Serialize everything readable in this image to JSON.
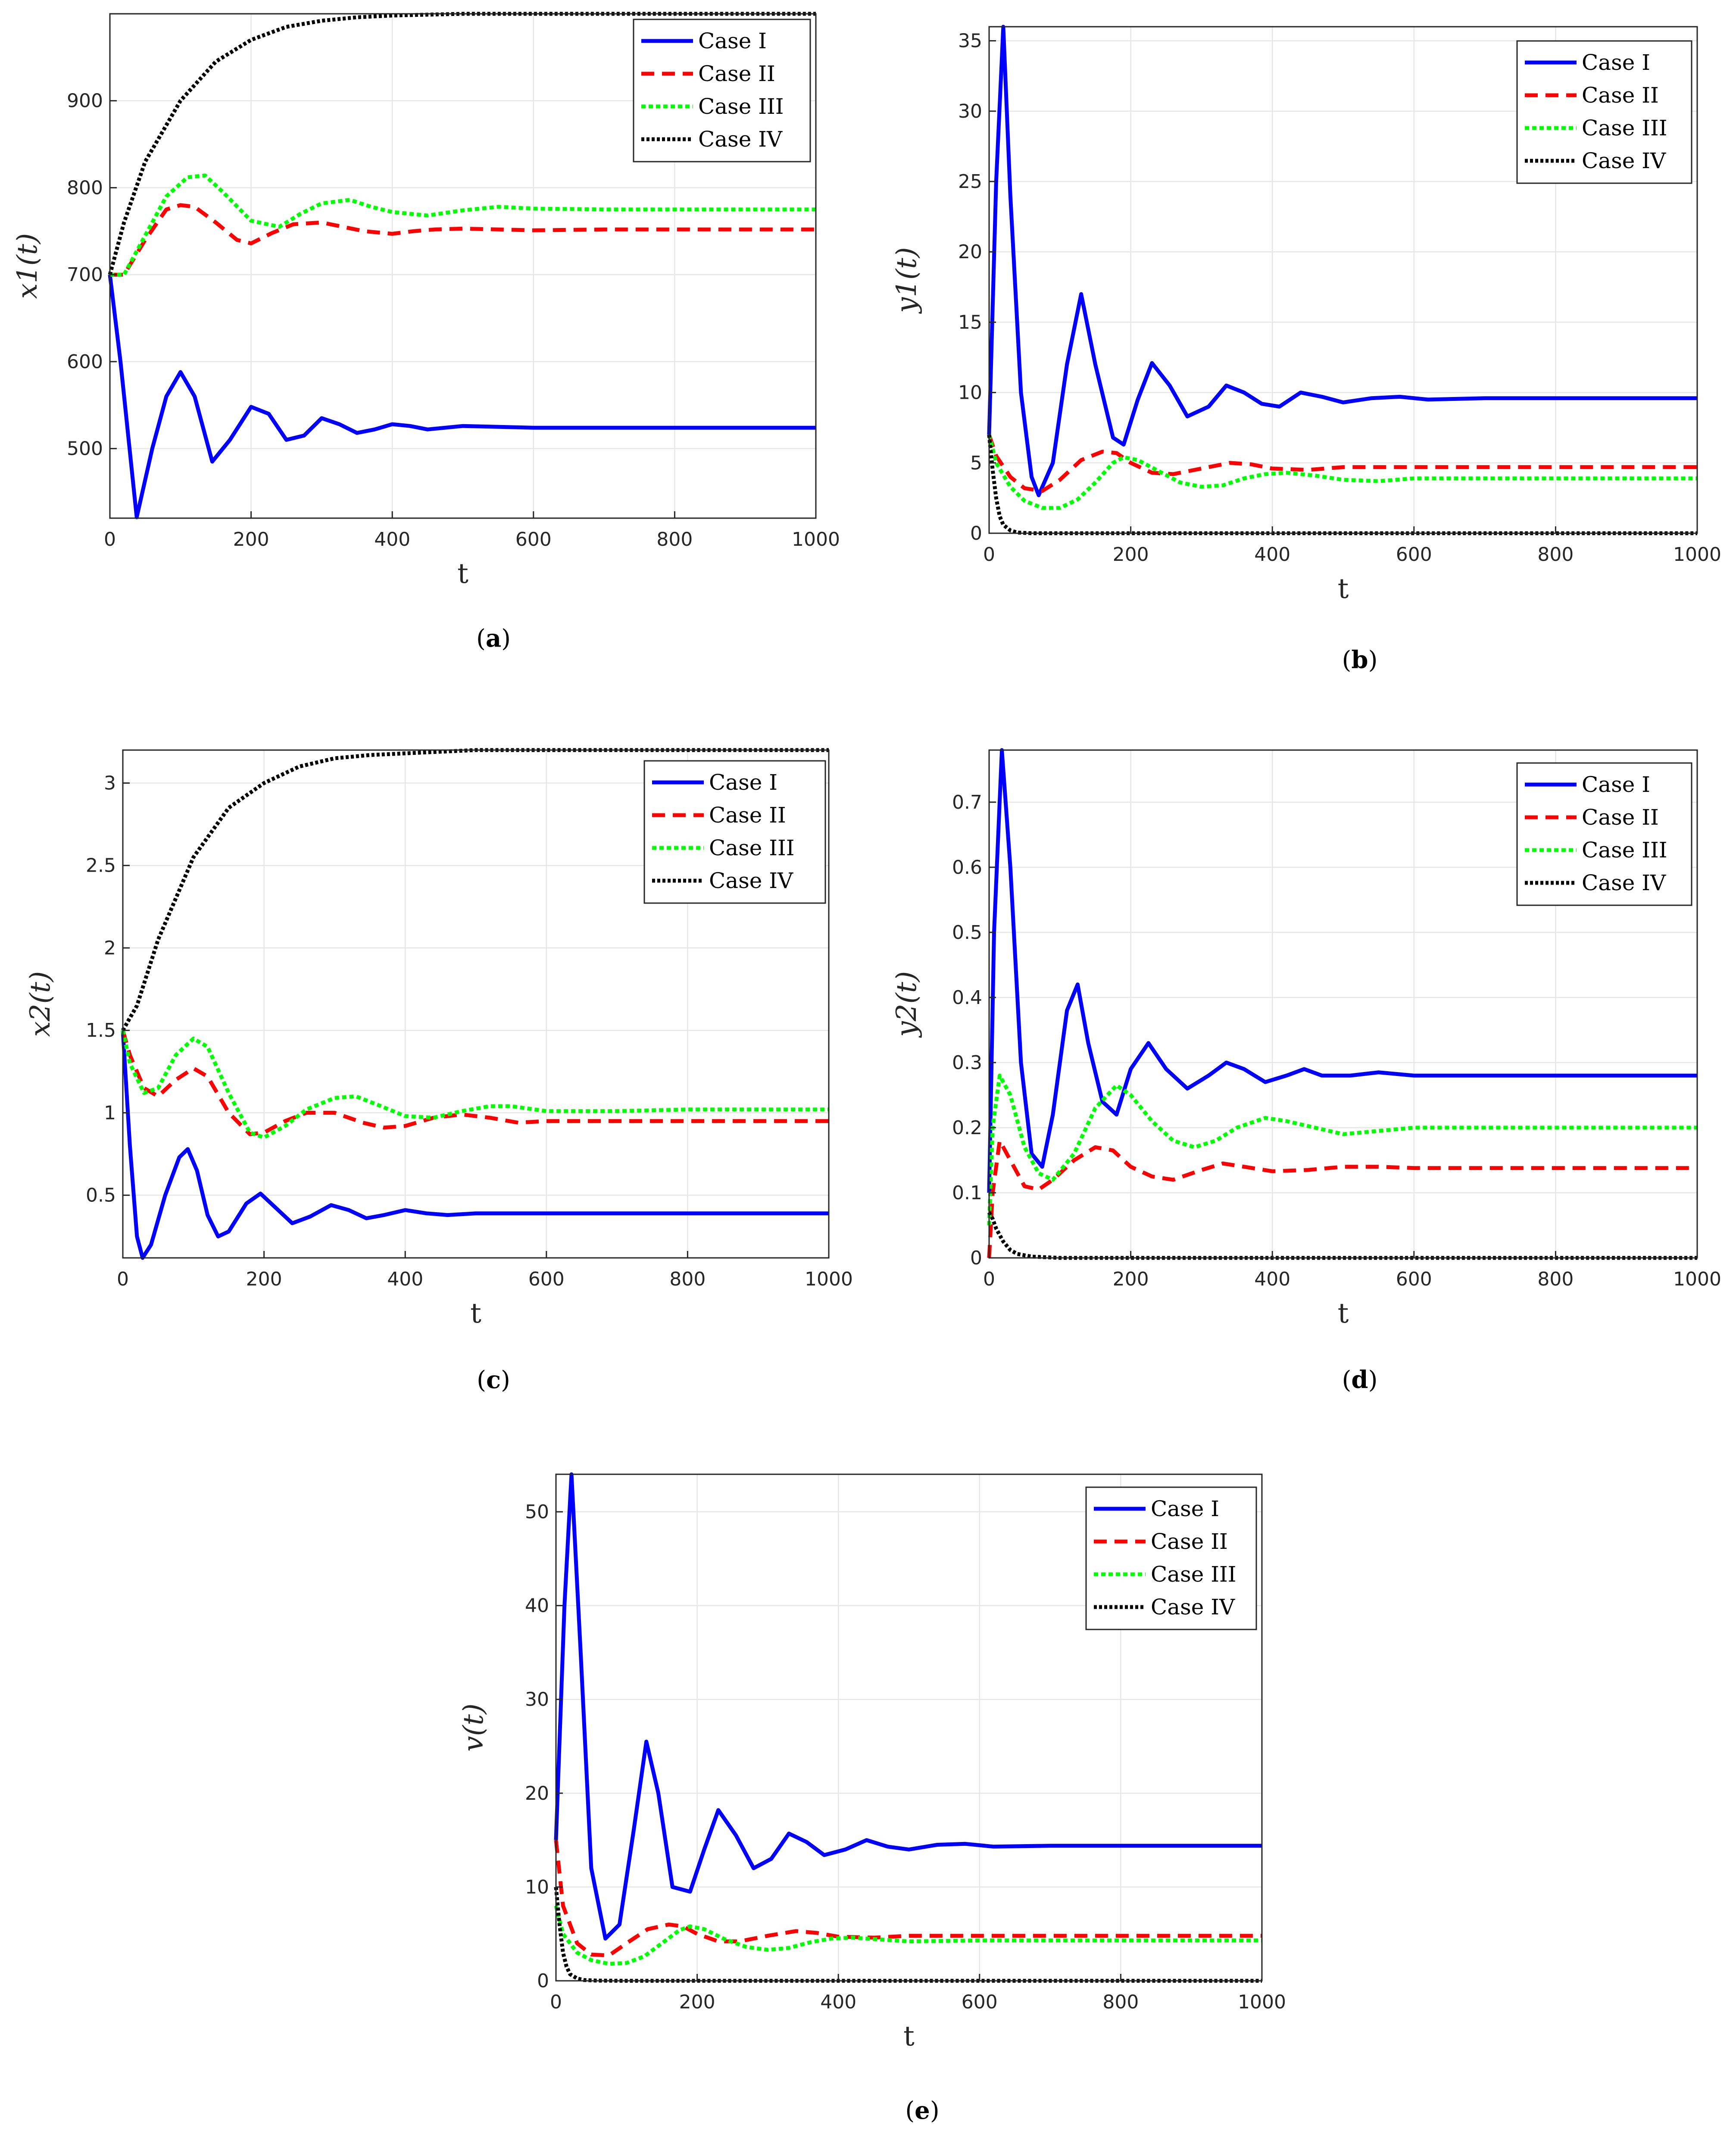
{
  "legend": [
    "Case I",
    "Case II",
    "Case III",
    "Case IV"
  ],
  "colors": {
    "case1": "#0000ff",
    "case2": "#ff0000",
    "case3": "#00ff00",
    "case4": "#000000",
    "grid": "#e6e6e6",
    "axis": "#262626"
  },
  "chart_data": [
    {
      "type": "line",
      "panel": "a",
      "xlabel": "t",
      "ylabel": "x1(t)",
      "xlim": [
        0,
        1000
      ],
      "ylim": [
        420,
        1000
      ],
      "xticks": [
        0,
        200,
        400,
        600,
        800,
        1000
      ],
      "yticks": [
        500,
        600,
        700,
        800,
        900
      ],
      "series": [
        {
          "name": "Case I",
          "x": [
            0,
            15,
            38,
            60,
            80,
            100,
            120,
            145,
            170,
            200,
            225,
            250,
            275,
            300,
            325,
            350,
            375,
            400,
            425,
            450,
            500,
            600,
            700,
            800,
            1000
          ],
          "y": [
            700,
            600,
            421,
            500,
            560,
            588,
            560,
            485,
            510,
            548,
            540,
            510,
            515,
            535,
            528,
            518,
            522,
            528,
            526,
            522,
            526,
            524,
            524,
            524,
            524
          ]
        },
        {
          "name": "Case II",
          "x": [
            0,
            20,
            50,
            80,
            100,
            120,
            150,
            180,
            200,
            230,
            260,
            300,
            330,
            360,
            400,
            430,
            460,
            500,
            550,
            600,
            700,
            800,
            1000
          ],
          "y": [
            700,
            700,
            740,
            775,
            780,
            778,
            760,
            740,
            736,
            748,
            758,
            760,
            755,
            750,
            747,
            750,
            752,
            753,
            752,
            751,
            752,
            752,
            752
          ]
        },
        {
          "name": "Case III",
          "x": [
            0,
            20,
            50,
            80,
            110,
            135,
            160,
            200,
            240,
            270,
            300,
            340,
            370,
            400,
            450,
            500,
            550,
            600,
            700,
            800,
            1000
          ],
          "y": [
            700,
            700,
            745,
            790,
            812,
            814,
            795,
            762,
            755,
            770,
            782,
            786,
            778,
            772,
            768,
            774,
            778,
            776,
            775,
            775,
            775
          ]
        },
        {
          "name": "Case IV",
          "x": [
            0,
            20,
            50,
            100,
            150,
            200,
            250,
            300,
            350,
            400,
            450,
            500,
            600,
            700,
            800,
            1000
          ],
          "y": [
            700,
            760,
            830,
            900,
            945,
            970,
            985,
            992,
            996,
            998,
            999,
            1000,
            1000,
            1000,
            1000,
            1000
          ]
        }
      ]
    },
    {
      "type": "line",
      "panel": "b",
      "xlabel": "t",
      "ylabel": "y1(t)",
      "xlim": [
        0,
        1000
      ],
      "ylim": [
        0,
        36
      ],
      "xticks": [
        0,
        200,
        400,
        600,
        800,
        1000
      ],
      "yticks": [
        0,
        5,
        10,
        15,
        20,
        25,
        30,
        35
      ],
      "series": [
        {
          "name": "Case I",
          "x": [
            0,
            10,
            20,
            30,
            45,
            60,
            70,
            90,
            110,
            130,
            150,
            175,
            190,
            210,
            230,
            255,
            280,
            310,
            335,
            360,
            385,
            410,
            440,
            470,
            500,
            540,
            580,
            620,
            700,
            800,
            1000
          ],
          "y": [
            7,
            25,
            36,
            24,
            10,
            4,
            2.7,
            5,
            12,
            17,
            12,
            6.8,
            6.3,
            9.5,
            12.1,
            10.5,
            8.3,
            9.0,
            10.5,
            10.0,
            9.2,
            9.0,
            10.0,
            9.7,
            9.3,
            9.6,
            9.7,
            9.5,
            9.6,
            9.6,
            9.6
          ]
        },
        {
          "name": "Case II",
          "x": [
            0,
            10,
            30,
            50,
            75,
            100,
            130,
            160,
            180,
            200,
            230,
            260,
            300,
            340,
            370,
            400,
            450,
            500,
            600,
            700,
            800,
            1000
          ],
          "y": [
            7,
            5.5,
            4,
            3.2,
            3,
            3.8,
            5.2,
            5.8,
            5.7,
            5.0,
            4.3,
            4.2,
            4.6,
            5.0,
            4.9,
            4.6,
            4.5,
            4.7,
            4.7,
            4.7,
            4.7,
            4.7
          ]
        },
        {
          "name": "Case III",
          "x": [
            0,
            10,
            30,
            50,
            75,
            100,
            125,
            150,
            175,
            190,
            210,
            240,
            270,
            300,
            330,
            360,
            390,
            420,
            460,
            500,
            550,
            600,
            700,
            800,
            1000
          ],
          "y": [
            7,
            5,
            3.3,
            2.3,
            1.8,
            1.8,
            2.4,
            3.6,
            5.0,
            5.4,
            5.2,
            4.4,
            3.6,
            3.3,
            3.4,
            3.9,
            4.2,
            4.3,
            4.1,
            3.8,
            3.7,
            3.9,
            3.9,
            3.9,
            3.9
          ]
        },
        {
          "name": "Case IV",
          "x": [
            0,
            5,
            10,
            15,
            20,
            30,
            40,
            60,
            100,
            1000
          ],
          "y": [
            7,
            4.5,
            2.5,
            1.2,
            0.6,
            0.2,
            0.05,
            0,
            0,
            0
          ]
        }
      ]
    },
    {
      "type": "line",
      "panel": "c",
      "xlabel": "t",
      "ylabel": "x2(t)",
      "xlim": [
        0,
        1000
      ],
      "ylim": [
        0.12,
        3.2
      ],
      "xticks": [
        0,
        200,
        400,
        600,
        800,
        1000
      ],
      "yticks": [
        0.5,
        1,
        1.5,
        2,
        2.5,
        3
      ],
      "series": [
        {
          "name": "Case I",
          "x": [
            0,
            10,
            20,
            28,
            40,
            60,
            80,
            92,
            105,
            120,
            135,
            150,
            175,
            195,
            215,
            240,
            265,
            295,
            320,
            345,
            370,
            400,
            430,
            460,
            500,
            600,
            700,
            800,
            1000
          ],
          "y": [
            1.5,
            0.8,
            0.25,
            0.12,
            0.2,
            0.5,
            0.73,
            0.78,
            0.65,
            0.38,
            0.25,
            0.28,
            0.45,
            0.51,
            0.43,
            0.33,
            0.37,
            0.44,
            0.41,
            0.36,
            0.38,
            0.41,
            0.39,
            0.38,
            0.39,
            0.39,
            0.39,
            0.39,
            0.39
          ]
        },
        {
          "name": "Case II",
          "x": [
            0,
            10,
            30,
            50,
            75,
            100,
            120,
            150,
            180,
            200,
            230,
            260,
            300,
            340,
            370,
            400,
            440,
            480,
            520,
            560,
            600,
            700,
            800,
            1000
          ],
          "y": [
            1.5,
            1.35,
            1.15,
            1.1,
            1.2,
            1.27,
            1.22,
            1.0,
            0.87,
            0.88,
            0.95,
            1.0,
            1.0,
            0.94,
            0.91,
            0.92,
            0.97,
            0.99,
            0.97,
            0.94,
            0.95,
            0.95,
            0.95,
            0.95
          ]
        },
        {
          "name": "Case III",
          "x": [
            0,
            10,
            30,
            50,
            75,
            100,
            120,
            150,
            180,
            200,
            230,
            260,
            300,
            330,
            360,
            400,
            440,
            480,
            520,
            550,
            600,
            700,
            800,
            1000
          ],
          "y": [
            1.5,
            1.3,
            1.12,
            1.15,
            1.35,
            1.45,
            1.4,
            1.12,
            0.88,
            0.85,
            0.92,
            1.02,
            1.09,
            1.1,
            1.05,
            0.98,
            0.97,
            1.01,
            1.04,
            1.04,
            1.01,
            1.01,
            1.02,
            1.02
          ]
        },
        {
          "name": "Case IV",
          "x": [
            0,
            20,
            50,
            100,
            150,
            200,
            250,
            300,
            350,
            400,
            450,
            500,
            600,
            700,
            800,
            1000
          ],
          "y": [
            1.5,
            1.65,
            2.05,
            2.55,
            2.85,
            3.0,
            3.1,
            3.15,
            3.17,
            3.18,
            3.19,
            3.2,
            3.2,
            3.2,
            3.2,
            3.2
          ]
        }
      ]
    },
    {
      "type": "line",
      "panel": "d",
      "xlabel": "t",
      "ylabel": "y2(t)",
      "xlim": [
        0,
        1000
      ],
      "ylim": [
        0,
        0.78
      ],
      "xticks": [
        0,
        200,
        400,
        600,
        800,
        1000
      ],
      "yticks": [
        0,
        0.1,
        0.2,
        0.3,
        0.4,
        0.5,
        0.6,
        0.7
      ],
      "series": [
        {
          "name": "Case I",
          "x": [
            0,
            7,
            18,
            30,
            45,
            60,
            75,
            90,
            110,
            125,
            140,
            160,
            180,
            200,
            225,
            250,
            280,
            310,
            335,
            360,
            390,
            420,
            445,
            470,
            510,
            550,
            600,
            700,
            800,
            1000
          ],
          "y": [
            0.1,
            0.5,
            0.78,
            0.6,
            0.3,
            0.16,
            0.14,
            0.22,
            0.38,
            0.42,
            0.33,
            0.24,
            0.22,
            0.29,
            0.33,
            0.29,
            0.26,
            0.28,
            0.3,
            0.29,
            0.27,
            0.28,
            0.29,
            0.28,
            0.28,
            0.285,
            0.28,
            0.28,
            0.28,
            0.28
          ]
        },
        {
          "name": "Case II",
          "x": [
            0,
            5,
            15,
            30,
            50,
            70,
            90,
            120,
            150,
            175,
            200,
            230,
            260,
            300,
            330,
            360,
            400,
            450,
            500,
            550,
            600,
            700,
            800,
            1000
          ],
          "y": [
            0.0,
            0.1,
            0.18,
            0.15,
            0.11,
            0.105,
            0.12,
            0.15,
            0.17,
            0.165,
            0.14,
            0.125,
            0.12,
            0.135,
            0.145,
            0.14,
            0.133,
            0.135,
            0.14,
            0.14,
            0.138,
            0.138,
            0.138,
            0.138
          ]
        },
        {
          "name": "Case III",
          "x": [
            0,
            5,
            15,
            30,
            50,
            70,
            90,
            120,
            150,
            180,
            200,
            230,
            260,
            290,
            320,
            350,
            390,
            420,
            460,
            500,
            550,
            600,
            700,
            800,
            1000
          ],
          "y": [
            0.05,
            0.2,
            0.28,
            0.25,
            0.17,
            0.13,
            0.12,
            0.16,
            0.23,
            0.265,
            0.25,
            0.21,
            0.18,
            0.17,
            0.18,
            0.2,
            0.215,
            0.21,
            0.2,
            0.19,
            0.195,
            0.2,
            0.2,
            0.2,
            0.2
          ]
        },
        {
          "name": "Case IV",
          "x": [
            0,
            5,
            10,
            15,
            20,
            30,
            40,
            60,
            100,
            1000
          ],
          "y": [
            0.07,
            0.06,
            0.045,
            0.035,
            0.025,
            0.012,
            0.006,
            0.002,
            0,
            0
          ]
        }
      ]
    },
    {
      "type": "line",
      "panel": "e",
      "xlabel": "t",
      "ylabel": "v(t)",
      "xlim": [
        0,
        1000
      ],
      "ylim": [
        0,
        54
      ],
      "xticks": [
        0,
        200,
        400,
        600,
        800,
        1000
      ],
      "yticks": [
        0,
        10,
        20,
        30,
        40,
        50
      ],
      "series": [
        {
          "name": "Case I",
          "x": [
            0,
            12,
            22,
            35,
            50,
            70,
            90,
            110,
            128,
            145,
            165,
            190,
            210,
            230,
            255,
            280,
            305,
            330,
            355,
            380,
            410,
            440,
            470,
            500,
            540,
            580,
            620,
            700,
            800,
            1000
          ],
          "y": [
            15,
            40,
            54,
            35,
            12,
            4.5,
            6,
            16,
            25.5,
            20,
            10,
            9.5,
            14,
            18.2,
            15.5,
            12,
            13,
            15.7,
            14.8,
            13.4,
            14,
            15,
            14.3,
            14,
            14.5,
            14.6,
            14.3,
            14.4,
            14.4,
            14.4
          ]
        },
        {
          "name": "Case II",
          "x": [
            0,
            10,
            30,
            50,
            75,
            100,
            130,
            160,
            180,
            200,
            230,
            260,
            300,
            340,
            370,
            400,
            450,
            500,
            600,
            700,
            800,
            1000
          ],
          "y": [
            15,
            8,
            4,
            2.8,
            2.7,
            4,
            5.5,
            6,
            5.8,
            5,
            4.2,
            4.2,
            4.8,
            5.3,
            5.1,
            4.7,
            4.6,
            4.8,
            4.8,
            4.8,
            4.8,
            4.8
          ]
        },
        {
          "name": "Case III",
          "x": [
            0,
            10,
            30,
            50,
            75,
            100,
            125,
            150,
            175,
            190,
            210,
            240,
            270,
            300,
            330,
            360,
            390,
            420,
            460,
            500,
            600,
            700,
            800,
            1000
          ],
          "y": [
            8,
            5,
            3,
            2.2,
            1.8,
            1.9,
            2.6,
            4,
            5.4,
            5.8,
            5.5,
            4.4,
            3.6,
            3.3,
            3.5,
            4.1,
            4.5,
            4.6,
            4.4,
            4.2,
            4.3,
            4.3,
            4.3,
            4.3
          ]
        },
        {
          "name": "Case IV",
          "x": [
            0,
            5,
            10,
            15,
            20,
            30,
            40,
            60,
            100,
            1000
          ],
          "y": [
            10,
            6,
            3,
            1.5,
            0.7,
            0.25,
            0.08,
            0.02,
            0,
            0
          ]
        }
      ]
    }
  ],
  "panel_labels": [
    "a",
    "b",
    "c",
    "d",
    "e"
  ]
}
